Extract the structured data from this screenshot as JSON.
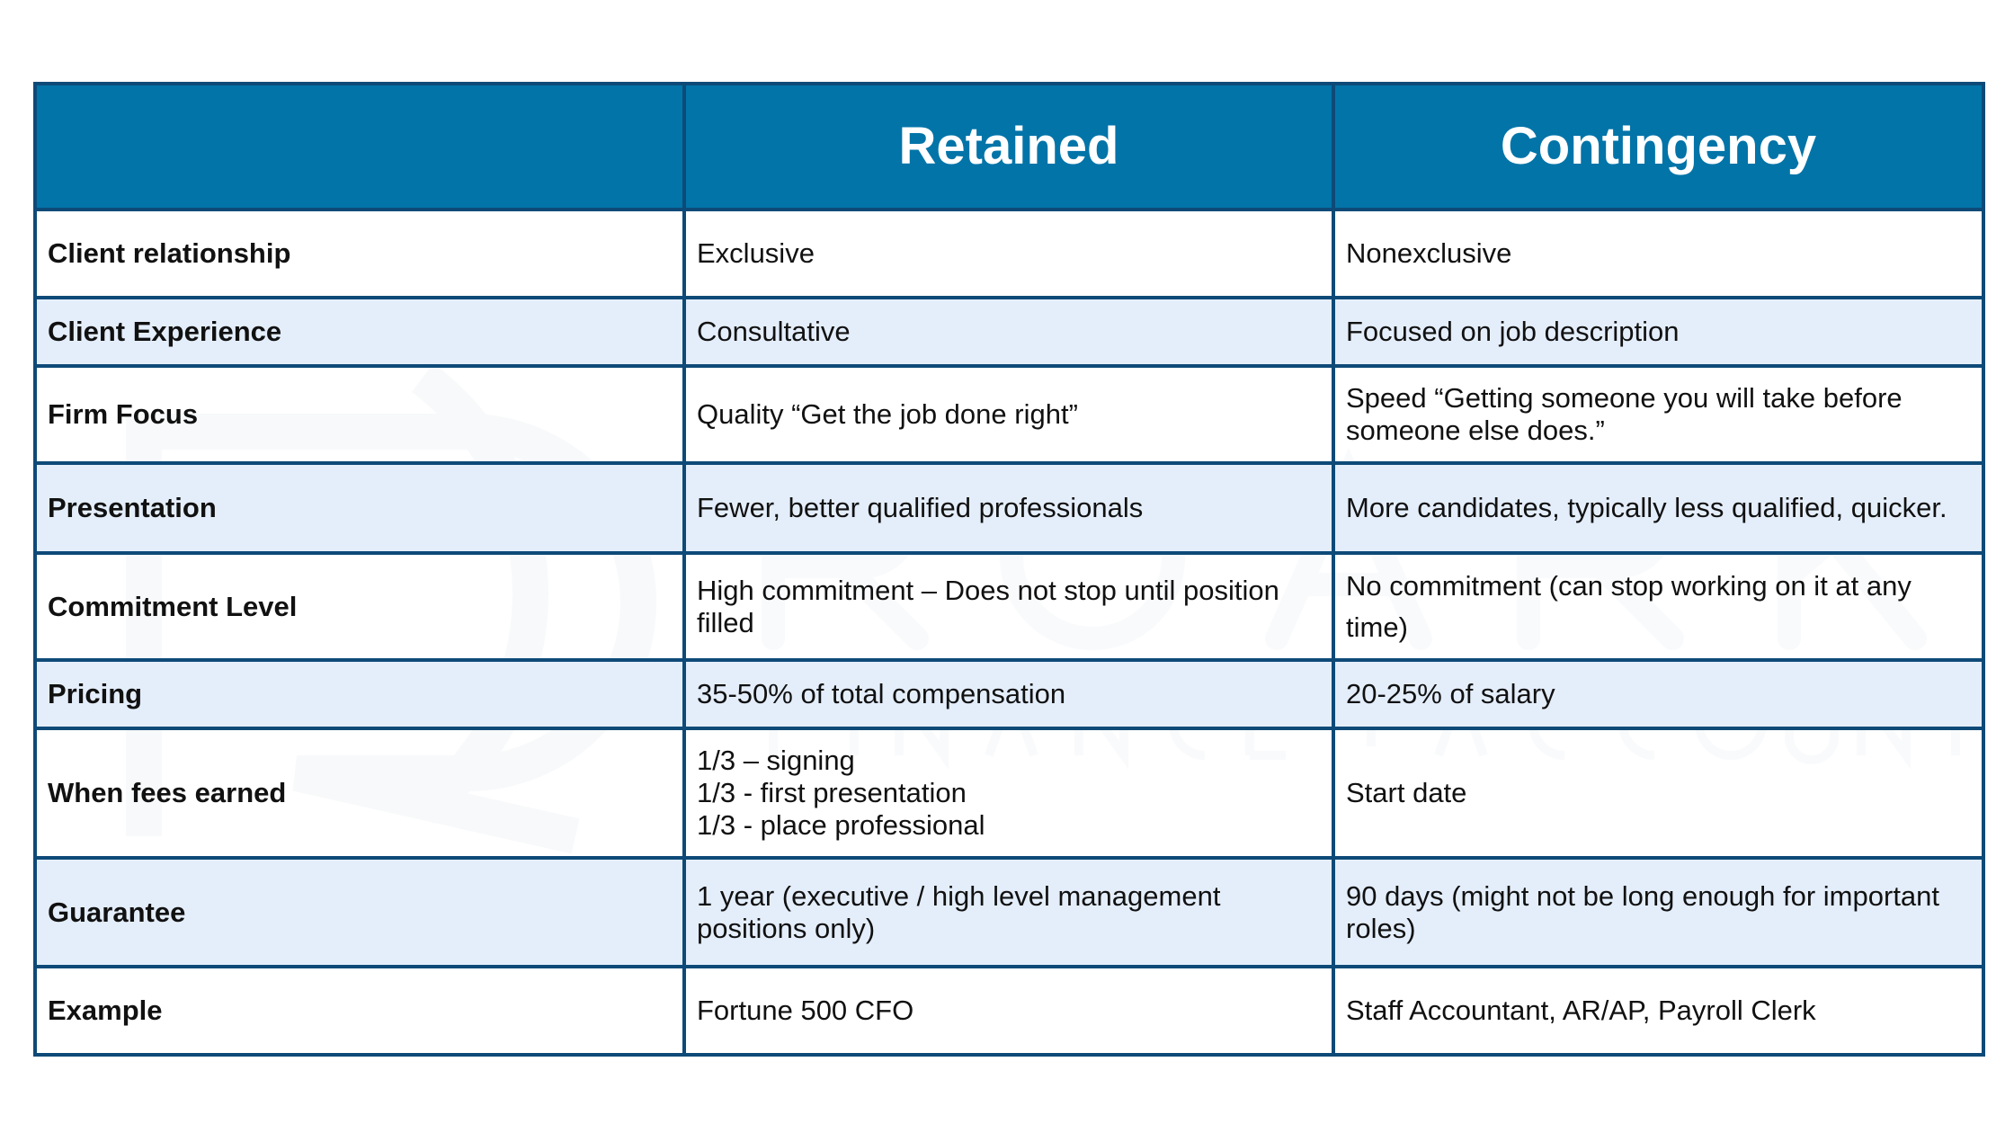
{
  "watermark": {
    "brand": "ROARK",
    "tagline": "FINANCE + ACCOUNTING"
  },
  "header": {
    "col0": "",
    "col1": "Retained",
    "col2": "Contingency"
  },
  "rows": [
    {
      "label": "Client relationship",
      "retained": "Exclusive",
      "contingency": "Nonexclusive"
    },
    {
      "label": "Client Experience",
      "retained": "Consultative",
      "contingency": "Focused on job description"
    },
    {
      "label": "Firm Focus",
      "retained": "Quality “Get the job done right”",
      "contingency": "Speed “Getting someone you will take before someone else does.”"
    },
    {
      "label": "Presentation",
      "retained": "Fewer, better qualified professionals",
      "contingency": "More candidates, typically less qualified, quicker."
    },
    {
      "label": "Commitment Level",
      "retained": "High commitment – Does not stop until position filled",
      "contingency": "No commitment (can stop working on it at any time)"
    },
    {
      "label": "Pricing",
      "retained": "35-50% of total compensation",
      "contingency": "20-25% of salary"
    },
    {
      "label": "When fees earned",
      "retained": [
        "1/3 – signing",
        "1/3 - first presentation",
        "1/3 - place professional"
      ],
      "contingency": "Start date"
    },
    {
      "label": "Guarantee",
      "retained": "1 year (executive / high level management positions only)",
      "contingency": "90 days (might not be long enough for important roles)"
    },
    {
      "label": "Example",
      "retained": "Fortune 500 CFO",
      "contingency": "Staff Accountant, AR/AP, Payroll Clerk"
    }
  ],
  "colors": {
    "header_bg": "#0274a8",
    "border": "#0e4a78",
    "alt_row": "#e4eefb"
  }
}
